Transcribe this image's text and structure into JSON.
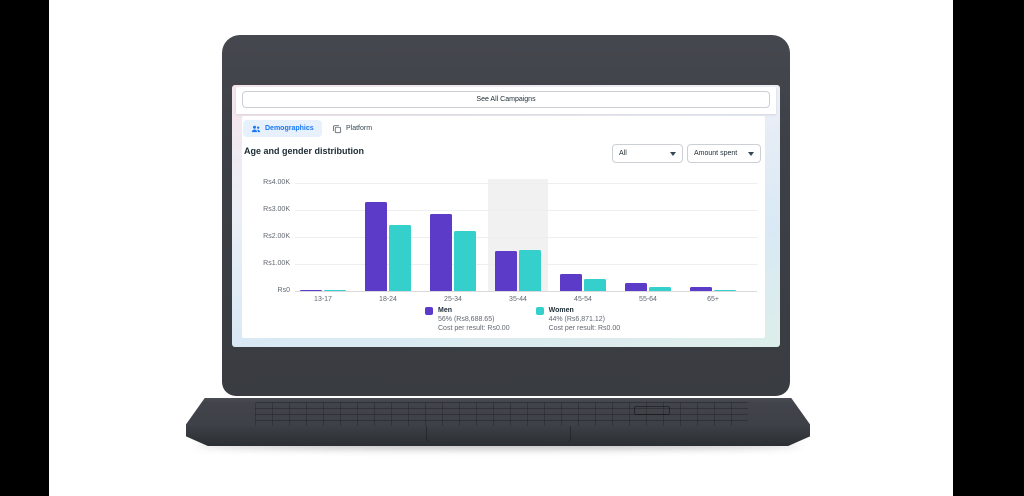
{
  "window": {
    "see_all_campaigns_label": "See All Campaigns"
  },
  "tabs": [
    {
      "label": "Demographics",
      "icon": "people-icon",
      "active": true
    },
    {
      "label": "Platform",
      "icon": "platform-icon",
      "active": false
    }
  ],
  "filters": {
    "scope_value": "All",
    "metric_value": "Amount spent"
  },
  "colors": {
    "accent_blue": "#1877F2",
    "tab_pill_bg": "#E7F0FD",
    "men": "#5C3BC8",
    "women": "#35D0CC",
    "text_dark": "#1C2B33",
    "text_gray": "#606770",
    "border": "#CED0D4"
  },
  "chart_data": {
    "type": "bar",
    "title": "Age and gender distribution",
    "categories": [
      "13-17",
      "18-24",
      "25-34",
      "35-44",
      "45-54",
      "55-64",
      "65+"
    ],
    "series": [
      {
        "name": "Men",
        "color": "#5C3BC8",
        "values": [
          50,
          3300,
          2870,
          1490,
          620,
          280,
          135
        ],
        "share_label": "56% (Rs8,688.65)",
        "cost_label": "Cost per result: Rs0.00"
      },
      {
        "name": "Women",
        "color": "#35D0CC",
        "values": [
          40,
          2450,
          2230,
          1520,
          440,
          165,
          55
        ],
        "share_label": "44% (Rs6,871.12)",
        "cost_label": "Cost per result: Rs0.00"
      }
    ],
    "y_tick_labels": [
      "Rs4.00K",
      "Rs3.00K",
      "Rs2.00K",
      "Rs1.00K",
      "Rs0"
    ],
    "ylim": [
      0,
      4000
    ],
    "currency_prefix": "Rs",
    "highlighted_category": "35-44",
    "grid": true,
    "legend_position": "bottom"
  }
}
